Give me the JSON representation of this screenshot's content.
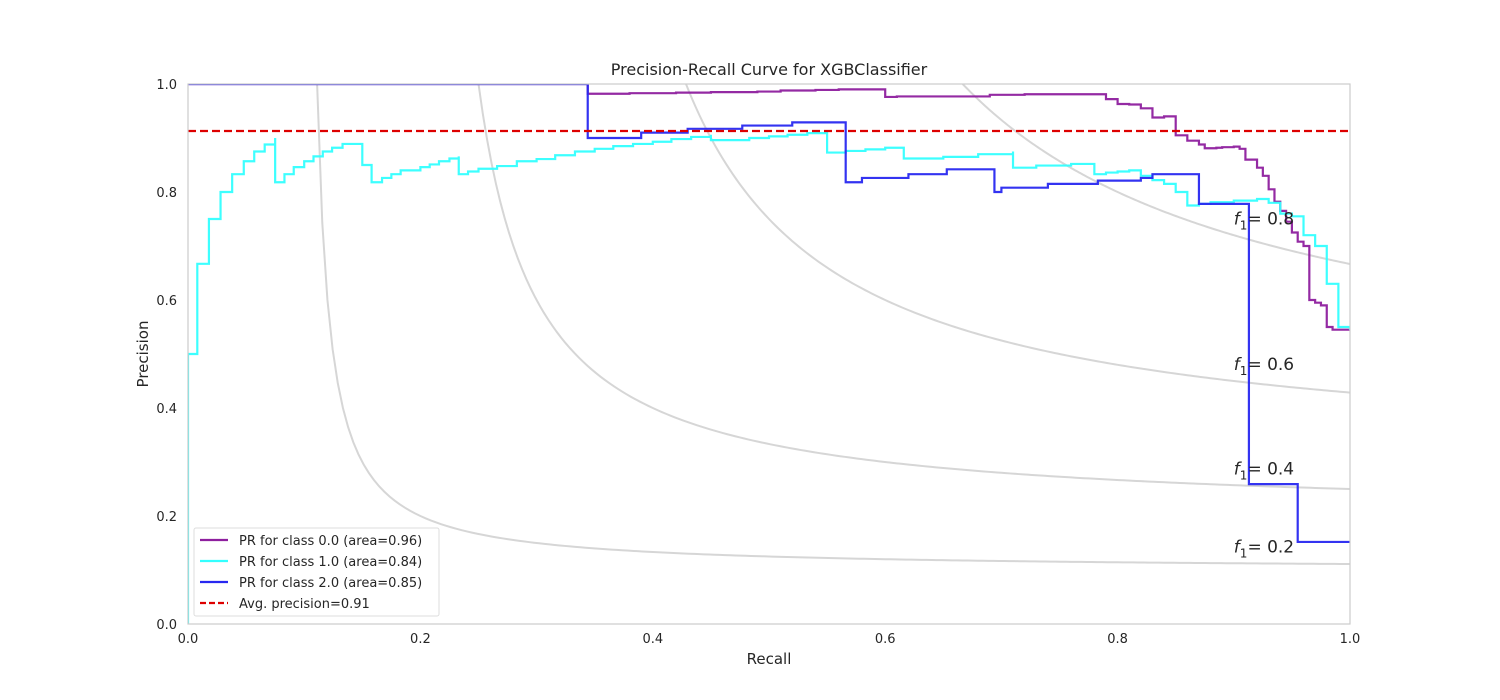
{
  "chart_data": {
    "type": "line",
    "title": "Precision-Recall Curve for XGBClassifier",
    "xlabel": "Recall",
    "ylabel": "Precision",
    "xlim": [
      0,
      1
    ],
    "ylim": [
      0,
      1
    ],
    "xticks": [
      "0.0",
      "0.2",
      "0.4",
      "0.6",
      "0.8",
      "1.0"
    ],
    "yticks": [
      "0.0",
      "0.2",
      "0.4",
      "0.6",
      "0.8",
      "1.0"
    ],
    "grid": false,
    "legend_position": "lower-left",
    "iso_f1": [
      {
        "f1": 0.2,
        "label_prefix": "f",
        "label_sub": "1",
        "label_suffix": "= 0.2"
      },
      {
        "f1": 0.4,
        "label_prefix": "f",
        "label_sub": "1",
        "label_suffix": "= 0.4"
      },
      {
        "f1": 0.6,
        "label_prefix": "f",
        "label_sub": "1",
        "label_suffix": "= 0.6"
      },
      {
        "f1": 0.8,
        "label_prefix": "f",
        "label_sub": "1",
        "label_suffix": "= 0.8"
      }
    ],
    "avg_precision": {
      "value": 0.913,
      "label": "Avg. precision=0.91",
      "color": "#dd0000"
    },
    "series": [
      {
        "name": "PR for class 0.0 (area=0.96)",
        "color": "#8e1f9e",
        "recall": [
          0.0,
          0.344,
          0.344,
          0.352,
          0.36,
          0.37,
          0.38,
          0.39,
          0.4,
          0.41,
          0.42,
          0.43,
          0.44,
          0.45,
          0.46,
          0.47,
          0.48,
          0.49,
          0.5,
          0.51,
          0.52,
          0.53,
          0.54,
          0.55,
          0.56,
          0.57,
          0.6,
          0.61,
          0.69,
          0.72,
          0.78,
          0.79,
          0.8,
          0.81,
          0.82,
          0.83,
          0.84,
          0.85,
          0.86,
          0.87,
          0.875,
          0.885,
          0.89,
          0.9,
          0.905,
          0.91,
          0.92,
          0.925,
          0.93,
          0.935,
          0.94,
          0.945,
          0.95,
          0.955,
          0.96,
          0.965,
          0.97,
          0.975,
          0.98,
          0.985,
          0.99,
          1.0
        ],
        "precision": [
          1.0,
          1.0,
          0.982,
          0.982,
          0.982,
          0.982,
          0.983,
          0.983,
          0.983,
          0.983,
          0.984,
          0.984,
          0.984,
          0.985,
          0.985,
          0.985,
          0.985,
          0.986,
          0.986,
          0.988,
          0.988,
          0.988,
          0.989,
          0.989,
          0.99,
          0.99,
          0.976,
          0.977,
          0.98,
          0.981,
          0.981,
          0.972,
          0.963,
          0.962,
          0.955,
          0.938,
          0.94,
          0.905,
          0.895,
          0.888,
          0.881,
          0.882,
          0.883,
          0.884,
          0.88,
          0.86,
          0.845,
          0.83,
          0.805,
          0.782,
          0.765,
          0.745,
          0.725,
          0.708,
          0.7,
          0.6,
          0.595,
          0.59,
          0.55,
          0.545,
          0.545,
          0.545
        ]
      },
      {
        "name": "PR for class 1.0 (area=0.84)",
        "color": "#33ffff",
        "recall": [
          0.0,
          0.0,
          0.008,
          0.018,
          0.028,
          0.038,
          0.048,
          0.057,
          0.066,
          0.075,
          0.075,
          0.083,
          0.091,
          0.1,
          0.108,
          0.116,
          0.124,
          0.133,
          0.15,
          0.158,
          0.158,
          0.167,
          0.175,
          0.183,
          0.2,
          0.208,
          0.216,
          0.225,
          0.233,
          0.233,
          0.241,
          0.25,
          0.266,
          0.283,
          0.3,
          0.316,
          0.333,
          0.35,
          0.366,
          0.383,
          0.4,
          0.416,
          0.433,
          0.45,
          0.45,
          0.483,
          0.5,
          0.516,
          0.533,
          0.55,
          0.55,
          0.566,
          0.566,
          0.583,
          0.6,
          0.616,
          0.616,
          0.65,
          0.68,
          0.71,
          0.71,
          0.73,
          0.76,
          0.78,
          0.79,
          0.8,
          0.81,
          0.82,
          0.83,
          0.84,
          0.85,
          0.86,
          0.87,
          0.88,
          0.9,
          0.92,
          0.93,
          0.94,
          0.95,
          0.96,
          0.97,
          0.98,
          0.99,
          1.0
        ],
        "precision": [
          0.0,
          0.5,
          0.667,
          0.75,
          0.8,
          0.833,
          0.857,
          0.875,
          0.888,
          0.9,
          0.818,
          0.833,
          0.846,
          0.857,
          0.866,
          0.875,
          0.882,
          0.889,
          0.85,
          0.818,
          0.818,
          0.826,
          0.833,
          0.84,
          0.846,
          0.851,
          0.857,
          0.862,
          0.866,
          0.833,
          0.838,
          0.843,
          0.848,
          0.857,
          0.861,
          0.868,
          0.875,
          0.88,
          0.885,
          0.889,
          0.893,
          0.898,
          0.902,
          0.906,
          0.896,
          0.9,
          0.903,
          0.906,
          0.909,
          0.912,
          0.873,
          0.873,
          0.876,
          0.879,
          0.882,
          0.86,
          0.862,
          0.865,
          0.87,
          0.875,
          0.845,
          0.849,
          0.852,
          0.833,
          0.836,
          0.838,
          0.84,
          0.83,
          0.822,
          0.815,
          0.8,
          0.775,
          0.778,
          0.781,
          0.784,
          0.787,
          0.78,
          0.76,
          0.755,
          0.72,
          0.7,
          0.63,
          0.55,
          0.545
        ]
      },
      {
        "name": "PR for class 2.0 (area=0.85)",
        "color": "#2828f0",
        "recall": [
          0.0,
          0.344,
          0.344,
          0.39,
          0.39,
          0.43,
          0.43,
          0.477,
          0.477,
          0.52,
          0.52,
          0.566,
          0.566,
          0.58,
          0.58,
          0.62,
          0.62,
          0.653,
          0.653,
          0.694,
          0.694,
          0.7,
          0.7,
          0.74,
          0.74,
          0.783,
          0.783,
          0.82,
          0.82,
          0.83,
          0.83,
          0.87,
          0.87,
          0.913,
          0.913,
          0.955,
          0.955,
          1.0
        ],
        "precision": [
          1.0,
          1.0,
          0.9,
          0.9,
          0.91,
          0.91,
          0.917,
          0.917,
          0.923,
          0.923,
          0.929,
          0.929,
          0.818,
          0.818,
          0.826,
          0.826,
          0.833,
          0.833,
          0.842,
          0.842,
          0.8,
          0.8,
          0.808,
          0.808,
          0.815,
          0.815,
          0.821,
          0.821,
          0.826,
          0.826,
          0.833,
          0.833,
          0.778,
          0.778,
          0.259,
          0.259,
          0.152,
          0.152
        ]
      }
    ]
  }
}
